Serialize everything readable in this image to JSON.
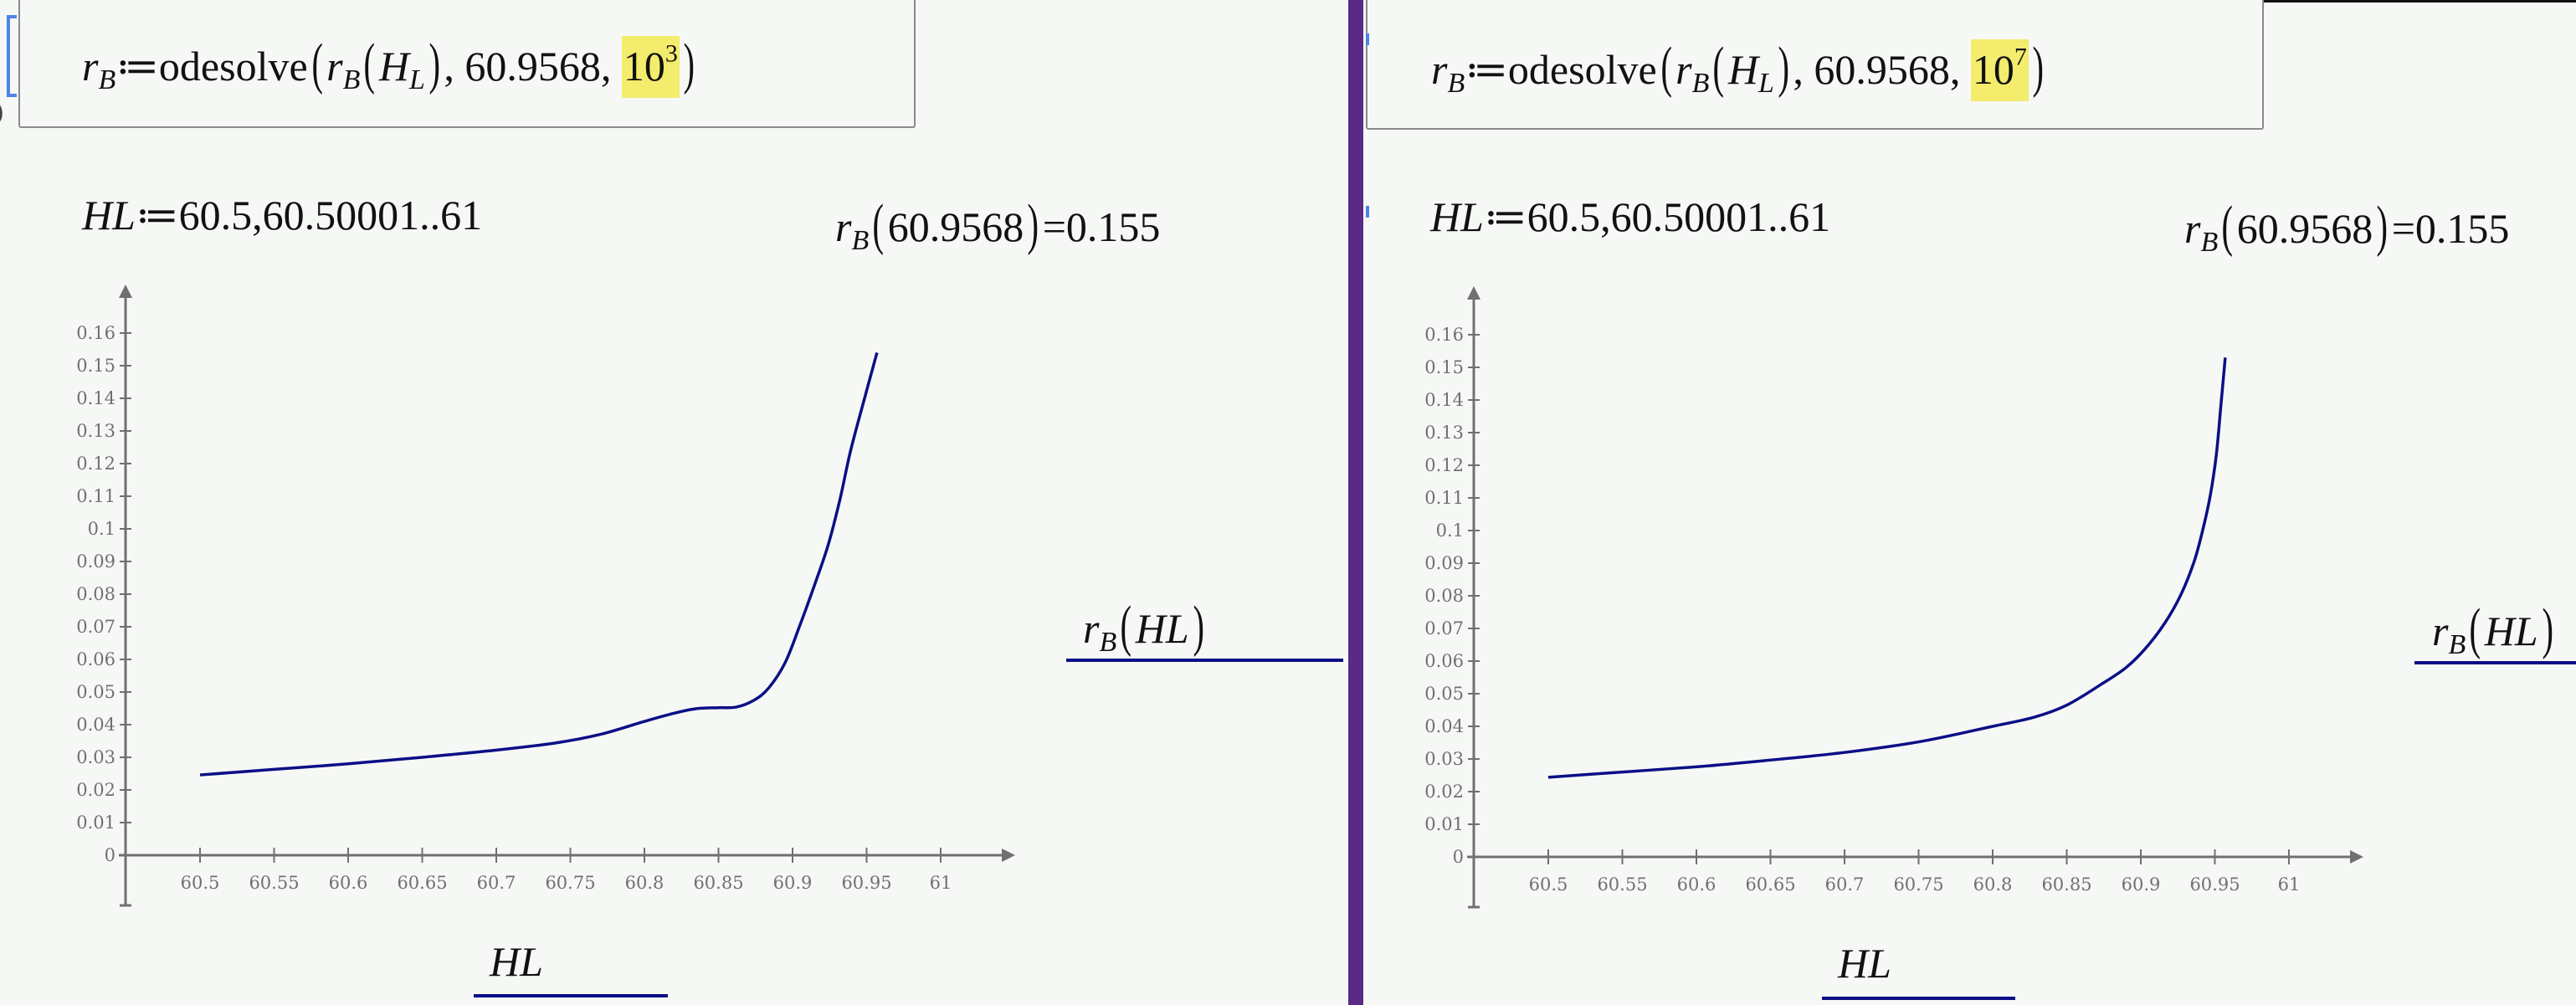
{
  "colors": {
    "background": "#f6f8f6",
    "divider": "#5a2a86",
    "highlight": "#f3ec6c",
    "trace": "#0b0f86",
    "axis": "#707070",
    "selection": "#4a86e8"
  },
  "panels": [
    {
      "definition": {
        "lhs_var": "r",
        "lhs_sub": "B",
        "assign": "≔",
        "func": "odesolve",
        "arg1_var": "r",
        "arg1_sub": "B",
        "arg1_inner_var": "H",
        "arg1_inner_sub": "L",
        "arg2": "60.9568",
        "arg3_base": "10",
        "arg3_exp": "3"
      },
      "range_def": {
        "var": "HL",
        "assign": "≔",
        "expr": "60.5,60.50001..61"
      },
      "eval": {
        "var": "r",
        "sub": "B",
        "arg": "60.9568",
        "equals": "=",
        "result": "0.155"
      },
      "legend": {
        "var": "r",
        "sub": "B",
        "arg": "HL"
      },
      "xaxis_title": "HL"
    },
    {
      "definition": {
        "lhs_var": "r",
        "lhs_sub": "B",
        "assign": "≔",
        "func": "odesolve",
        "arg1_var": "r",
        "arg1_sub": "B",
        "arg1_inner_var": "H",
        "arg1_inner_sub": "L",
        "arg2": "60.9568",
        "arg3_base": "10",
        "arg3_exp": "7"
      },
      "range_def": {
        "var": "HL",
        "assign": "≔",
        "expr": "60.5,60.50001..61"
      },
      "eval": {
        "var": "r",
        "sub": "B",
        "arg": "60.9568",
        "equals": "=",
        "result": "0.155"
      },
      "legend": {
        "var": "r",
        "sub": "B",
        "arg": "HL"
      },
      "xaxis_title": "HL"
    }
  ],
  "chart_data": [
    {
      "type": "line",
      "title": "r_B(HL) with odesolve steps = 10^3",
      "xlabel": "HL",
      "ylabel": "r_B(HL)",
      "xlim": [
        60.5,
        61
      ],
      "ylim": [
        0,
        0.16
      ],
      "grid": false,
      "legend_position": "right",
      "x_ticks": [
        "60.5",
        "60.55",
        "60.6",
        "60.65",
        "60.7",
        "60.75",
        "60.8",
        "60.85",
        "60.9",
        "60.95",
        "61"
      ],
      "y_ticks": [
        "0",
        "0.01",
        "0.02",
        "0.03",
        "0.04",
        "0.05",
        "0.06",
        "0.07",
        "0.08",
        "0.09",
        "0.1",
        "0.11",
        "0.12",
        "0.13",
        "0.14",
        "0.15",
        "0.16"
      ],
      "series": [
        {
          "name": "r_B(HL)",
          "x": [
            60.5,
            60.55,
            60.6,
            60.65,
            60.7,
            60.74,
            60.77,
            60.8,
            60.82,
            60.835,
            60.85,
            60.862,
            60.874,
            60.884,
            60.895,
            60.905,
            60.915,
            60.924,
            60.932,
            60.939,
            60.948,
            60.957
          ],
          "y": [
            0.0246,
            0.0263,
            0.028,
            0.03,
            0.0322,
            0.0344,
            0.037,
            0.041,
            0.0435,
            0.0449,
            0.0452,
            0.0454,
            0.0475,
            0.0513,
            0.059,
            0.0705,
            0.083,
            0.095,
            0.109,
            0.1236,
            0.139,
            0.154
          ]
        }
      ]
    },
    {
      "type": "line",
      "title": "r_B(HL) with odesolve steps = 10^7",
      "xlabel": "HL",
      "ylabel": "r_B(HL)",
      "xlim": [
        60.5,
        61
      ],
      "ylim": [
        0,
        0.16
      ],
      "grid": false,
      "legend_position": "right",
      "x_ticks": [
        "60.5",
        "60.55",
        "60.6",
        "60.65",
        "60.7",
        "60.75",
        "60.8",
        "60.85",
        "60.9",
        "60.95",
        "61"
      ],
      "y_ticks": [
        "0",
        "0.01",
        "0.02",
        "0.03",
        "0.04",
        "0.05",
        "0.06",
        "0.07",
        "0.08",
        "0.09",
        "0.1",
        "0.11",
        "0.12",
        "0.13",
        "0.14",
        "0.15",
        "0.16"
      ],
      "series": [
        {
          "name": "r_B(HL)",
          "x": [
            60.5,
            60.55,
            60.6,
            60.646,
            60.7,
            60.752,
            60.8,
            60.828,
            60.85,
            60.873,
            60.89,
            60.903,
            60.916,
            60.927,
            60.936,
            60.942,
            60.947,
            60.951,
            60.954,
            60.957
          ],
          "y": [
            0.0244,
            0.026,
            0.0276,
            0.0295,
            0.032,
            0.0354,
            0.04,
            0.0428,
            0.0465,
            0.0528,
            0.058,
            0.0638,
            0.0715,
            0.0803,
            0.0905,
            0.1005,
            0.111,
            0.1233,
            0.138,
            0.153
          ]
        }
      ]
    }
  ]
}
